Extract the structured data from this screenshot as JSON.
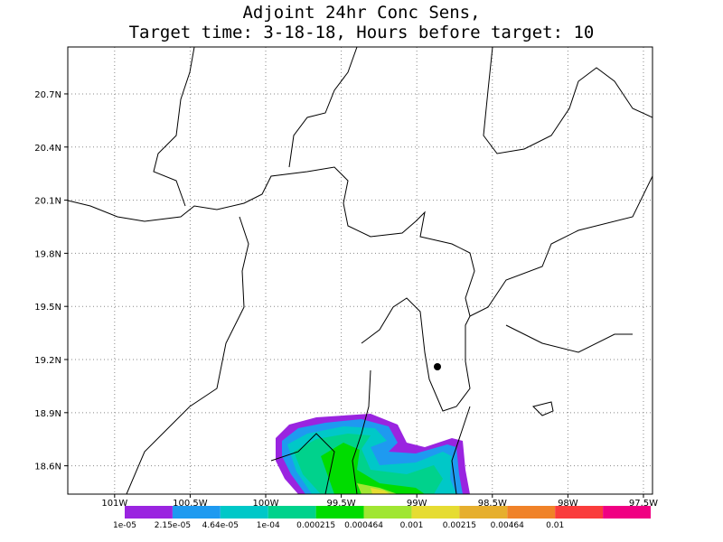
{
  "map": {
    "title": [
      "Adjoint 24hr Conc Sens,",
      "Target time: 3-18-18, Hours before target: 10"
    ],
    "xlim": [
      -101.31,
      -97.44
    ],
    "ylim": [
      18.44,
      20.965
    ],
    "xticks": [
      {
        "value": -101,
        "label": "101W"
      },
      {
        "value": -100.5,
        "label": "100.5W"
      },
      {
        "value": -100,
        "label": "100W"
      },
      {
        "value": -99.5,
        "label": "99.5W"
      },
      {
        "value": -99,
        "label": "99W"
      },
      {
        "value": -98.5,
        "label": "98.5W"
      },
      {
        "value": -98,
        "label": "98W"
      },
      {
        "value": -97.5,
        "label": "97.5W"
      }
    ],
    "yticks": [
      {
        "value": 18.6,
        "label": "18.6N"
      },
      {
        "value": 18.9,
        "label": "18.9N"
      },
      {
        "value": 19.2,
        "label": "19.2N"
      },
      {
        "value": 19.5,
        "label": "19.5N"
      },
      {
        "value": 19.8,
        "label": "19.8N"
      },
      {
        "value": 20.1,
        "label": "20.1N"
      },
      {
        "value": 20.4,
        "label": "20.4N"
      },
      {
        "value": 20.7,
        "label": "20.7N"
      }
    ],
    "colorbar": {
      "colors": [
        "#9a24e0",
        "#1e9af0",
        "#00c8c8",
        "#00d28c",
        "#00dc00",
        "#a0e632",
        "#e6dc32",
        "#e6af2d",
        "#f08228",
        "#fa3c3c",
        "#f00082"
      ],
      "labels": [
        "1e-05",
        "2.15e-05",
        "4.64e-05",
        "1e-04",
        "0.000215",
        "0.000464",
        "0.001",
        "0.00215",
        "0.00464",
        "0.01"
      ]
    }
  }
}
